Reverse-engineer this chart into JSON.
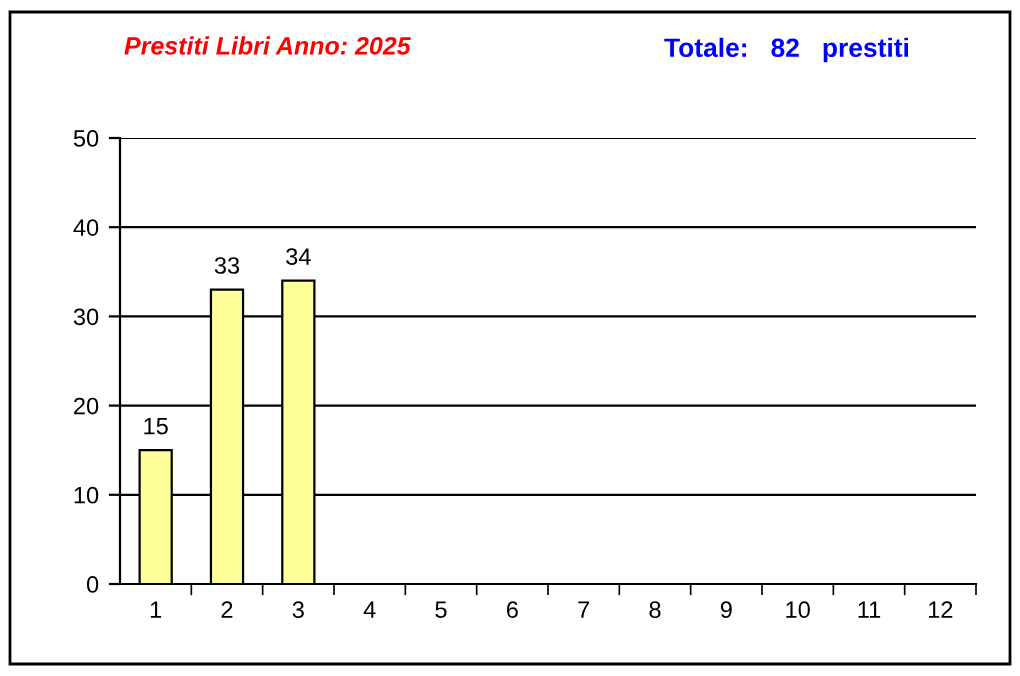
{
  "chart_data": {
    "type": "bar",
    "title": "Prestiti Libri Anno: 2025",
    "subtitle": "Totale:   82   prestiti",
    "categories": [
      "1",
      "2",
      "3",
      "4",
      "5",
      "6",
      "7",
      "8",
      "9",
      "10",
      "11",
      "12"
    ],
    "values": [
      15,
      33,
      34,
      null,
      null,
      null,
      null,
      null,
      null,
      null,
      null,
      null
    ],
    "color": "#ffff99",
    "ylim": [
      0,
      50
    ],
    "yticks": [
      0,
      10,
      20,
      30,
      40,
      50
    ],
    "grid": "y",
    "data_labels": true
  }
}
